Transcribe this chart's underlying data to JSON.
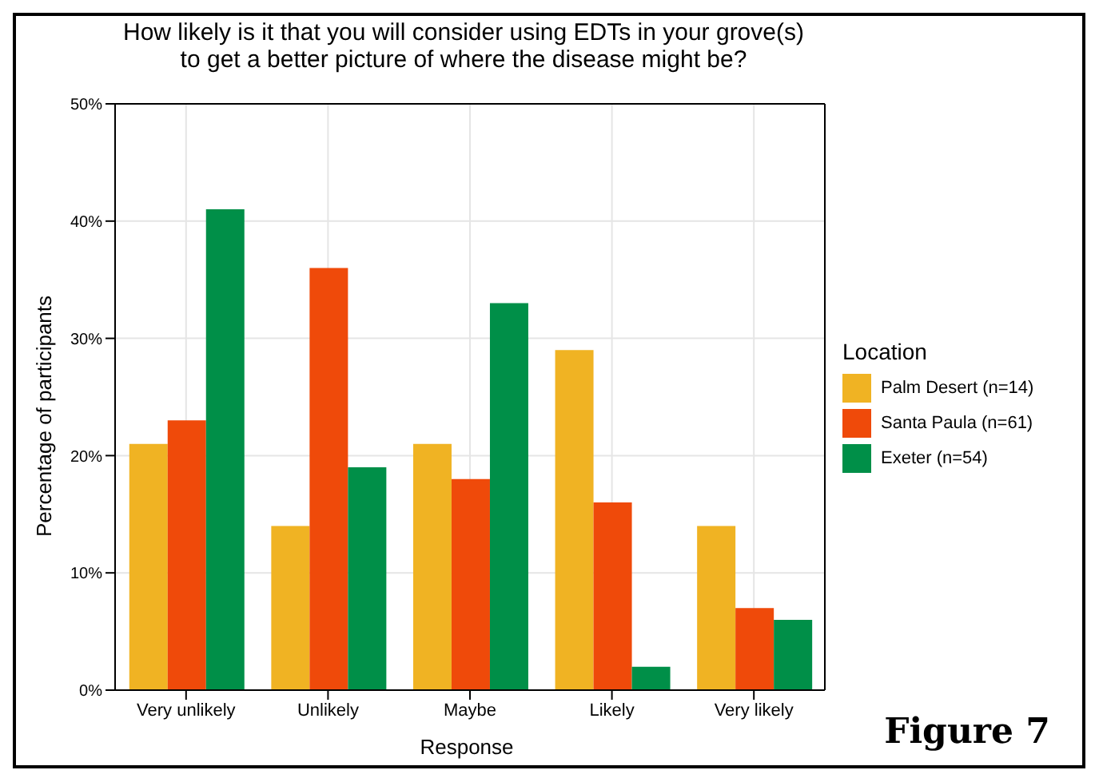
{
  "chart_data": {
    "type": "bar",
    "title": "How likely is it that you will consider using EDTs in your grove(s)\nto get a better picture of where the disease might be?",
    "xlabel": "Response",
    "ylabel": "Percentage of participants",
    "legend_title": "Location",
    "categories": [
      "Very unlikely",
      "Unlikely",
      "Maybe",
      "Likely",
      "Very likely"
    ],
    "series": [
      {
        "name": "Palm Desert (n=14)",
        "color": "#f0b323",
        "values": [
          21,
          14,
          21,
          29,
          14
        ]
      },
      {
        "name": "Santa Paula (n=61)",
        "color": "#ef4a0a",
        "values": [
          23,
          36,
          18,
          16,
          7
        ]
      },
      {
        "name": "Exeter (n=54)",
        "color": "#008f48",
        "values": [
          41,
          19,
          33,
          2,
          6
        ]
      }
    ],
    "ylim": [
      0,
      50
    ],
    "yticks": [
      {
        "value": 0,
        "label": "0%"
      },
      {
        "value": 10,
        "label": "10%"
      },
      {
        "value": 20,
        "label": "20%"
      },
      {
        "value": 30,
        "label": "30%"
      },
      {
        "value": 40,
        "label": "40%"
      },
      {
        "value": 50,
        "label": "50%"
      }
    ],
    "grid": true,
    "legend": "right",
    "annotations": [
      "Figure 7"
    ]
  }
}
